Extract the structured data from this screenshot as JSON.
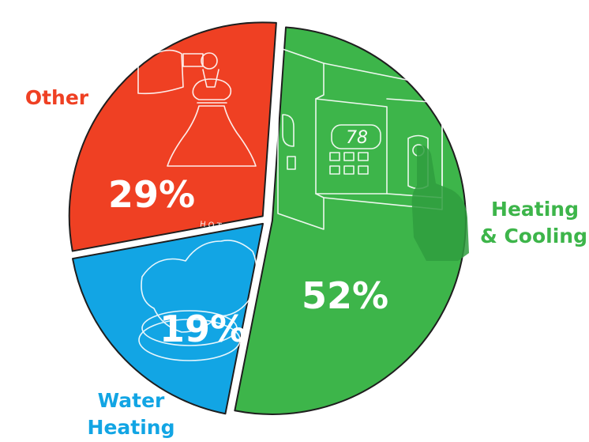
{
  "chart_data": {
    "type": "pie",
    "title": "",
    "slices": [
      {
        "label": "Heating & Cooling",
        "label_lines": [
          "Heating",
          "& Cooling"
        ],
        "value": 52,
        "display": "52%",
        "color": "#3db54a",
        "label_color": "#3db54a"
      },
      {
        "label": "Water Heating",
        "label_lines": [
          "Water",
          "Heating"
        ],
        "value": 19,
        "display": "19%",
        "color": "#12a5e4",
        "label_color": "#12a5e4",
        "illustration_text": "HOT"
      },
      {
        "label": "Other",
        "label_lines": [
          "Other"
        ],
        "value": 29,
        "display": "29%",
        "color": "#ef4023",
        "label_color": "#ef4023"
      }
    ]
  },
  "illustrations": {
    "thermostat_display": "78",
    "heating_icon": "thermostat-icon",
    "water_icon": "faucet-handle-icon",
    "other_icon": "lamp-icon"
  }
}
